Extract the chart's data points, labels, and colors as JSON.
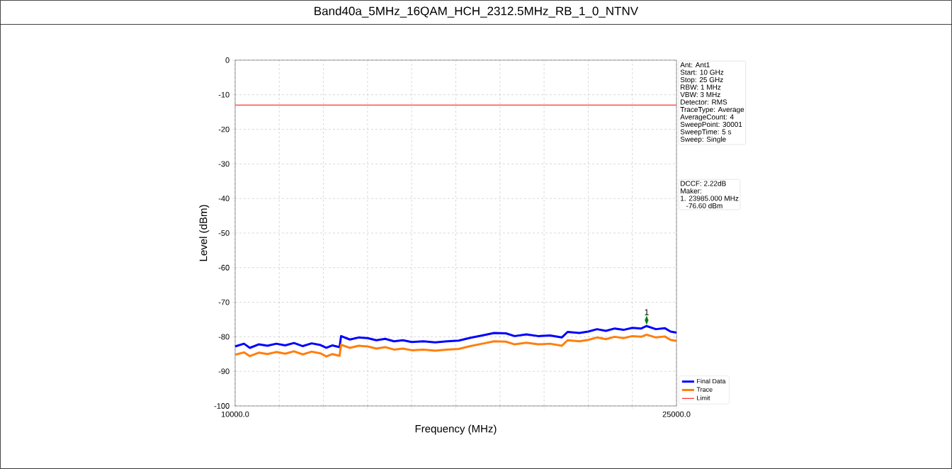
{
  "chart_data": {
    "type": "line",
    "title": "Band40a_5MHz_16QAM_HCH_2312.5MHz_RB_1_0_NTNV",
    "xlabel": "Frequency (MHz)",
    "ylabel": "Level (dBm)",
    "xlim": [
      10000,
      25000
    ],
    "ylim": [
      -100,
      0
    ],
    "xticks": [
      {
        "value": 10000,
        "label": "10000.0"
      },
      {
        "value": 11500,
        "label": null
      },
      {
        "value": 13000,
        "label": null
      },
      {
        "value": 14500,
        "label": null
      },
      {
        "value": 16000,
        "label": null
      },
      {
        "value": 17500,
        "label": null
      },
      {
        "value": 19000,
        "label": null
      },
      {
        "value": 20500,
        "label": null
      },
      {
        "value": 22000,
        "label": null
      },
      {
        "value": 23500,
        "label": null
      },
      {
        "value": 25000,
        "label": "25000.0"
      }
    ],
    "yticks": [
      -100,
      -90,
      -80,
      -70,
      -60,
      -50,
      -40,
      -30,
      -20,
      -10,
      0
    ],
    "grid": true,
    "legend": "bottom right",
    "marker": "none",
    "line_style": "solid",
    "x": [
      10000,
      10300,
      10500,
      10800,
      11100,
      11400,
      11700,
      12000,
      12300,
      12600,
      12900,
      13100,
      13300,
      13550,
      13600,
      13900,
      14200,
      14500,
      14800,
      15100,
      15400,
      15700,
      16000,
      16400,
      16800,
      17200,
      17600,
      18000,
      18400,
      18800,
      19200,
      19500,
      19900,
      20300,
      20700,
      21100,
      21300,
      21700,
      22000,
      22300,
      22600,
      22900,
      23200,
      23500,
      23800,
      23985,
      24300,
      24600,
      24800,
      25000
    ],
    "series": [
      {
        "name": "Final Data",
        "color": "#0000ff",
        "values": [
          -82.8,
          -82.0,
          -83.2,
          -82.2,
          -82.6,
          -82.0,
          -82.5,
          -81.8,
          -82.7,
          -81.9,
          -82.4,
          -83.2,
          -82.5,
          -83.0,
          -79.8,
          -80.8,
          -80.2,
          -80.4,
          -81.0,
          -80.6,
          -81.3,
          -81.0,
          -81.5,
          -81.3,
          -81.6,
          -81.3,
          -81.1,
          -80.3,
          -79.6,
          -78.9,
          -79.0,
          -79.8,
          -79.3,
          -79.8,
          -79.6,
          -80.2,
          -78.6,
          -78.9,
          -78.5,
          -77.8,
          -78.3,
          -77.6,
          -78.0,
          -77.4,
          -77.6,
          -76.9,
          -77.8,
          -77.5,
          -78.5,
          -78.8
        ]
      },
      {
        "name": "Trace",
        "color": "#ff7f0e",
        "values": [
          -85.2,
          -84.5,
          -85.6,
          -84.6,
          -85.0,
          -84.4,
          -84.9,
          -84.2,
          -85.1,
          -84.3,
          -84.8,
          -85.7,
          -85.0,
          -85.5,
          -82.3,
          -83.2,
          -82.6,
          -82.8,
          -83.4,
          -83.0,
          -83.7,
          -83.4,
          -83.9,
          -83.7,
          -84.0,
          -83.7,
          -83.5,
          -82.7,
          -82.0,
          -81.3,
          -81.4,
          -82.2,
          -81.7,
          -82.2,
          -82.0,
          -82.6,
          -81.0,
          -81.3,
          -80.9,
          -80.2,
          -80.7,
          -80.0,
          -80.4,
          -79.8,
          -80.0,
          -79.4,
          -80.2,
          -79.9,
          -80.9,
          -81.2
        ]
      },
      {
        "name": "Limit",
        "color": "#ff0000",
        "x": [
          10000,
          25000
        ],
        "values": [
          -13,
          -13
        ]
      },
      {
        "type": "scatter",
        "color": "#008000",
        "marker": "diamond",
        "x": [
          23985
        ],
        "values": [
          -75.2
        ]
      }
    ],
    "annotations": [
      {
        "text": "1",
        "x": 23985,
        "y": -75.2
      },
      "Ant: Ant1",
      "Start: 10 GHz",
      "Stop: 25 GHz",
      "RBW: 1 MHz",
      "VBW: 3 MHz",
      "Detector: RMS",
      "TraceType: Average",
      "AverageCount: 4",
      "SweepPoint: 30001",
      "SweepTime: 5 s",
      "Sweep: Single",
      "DCCF: 2.22dB",
      "Maker:",
      "1. 23985.000 MHz",
      "   -76.60 dBm"
    ]
  }
}
